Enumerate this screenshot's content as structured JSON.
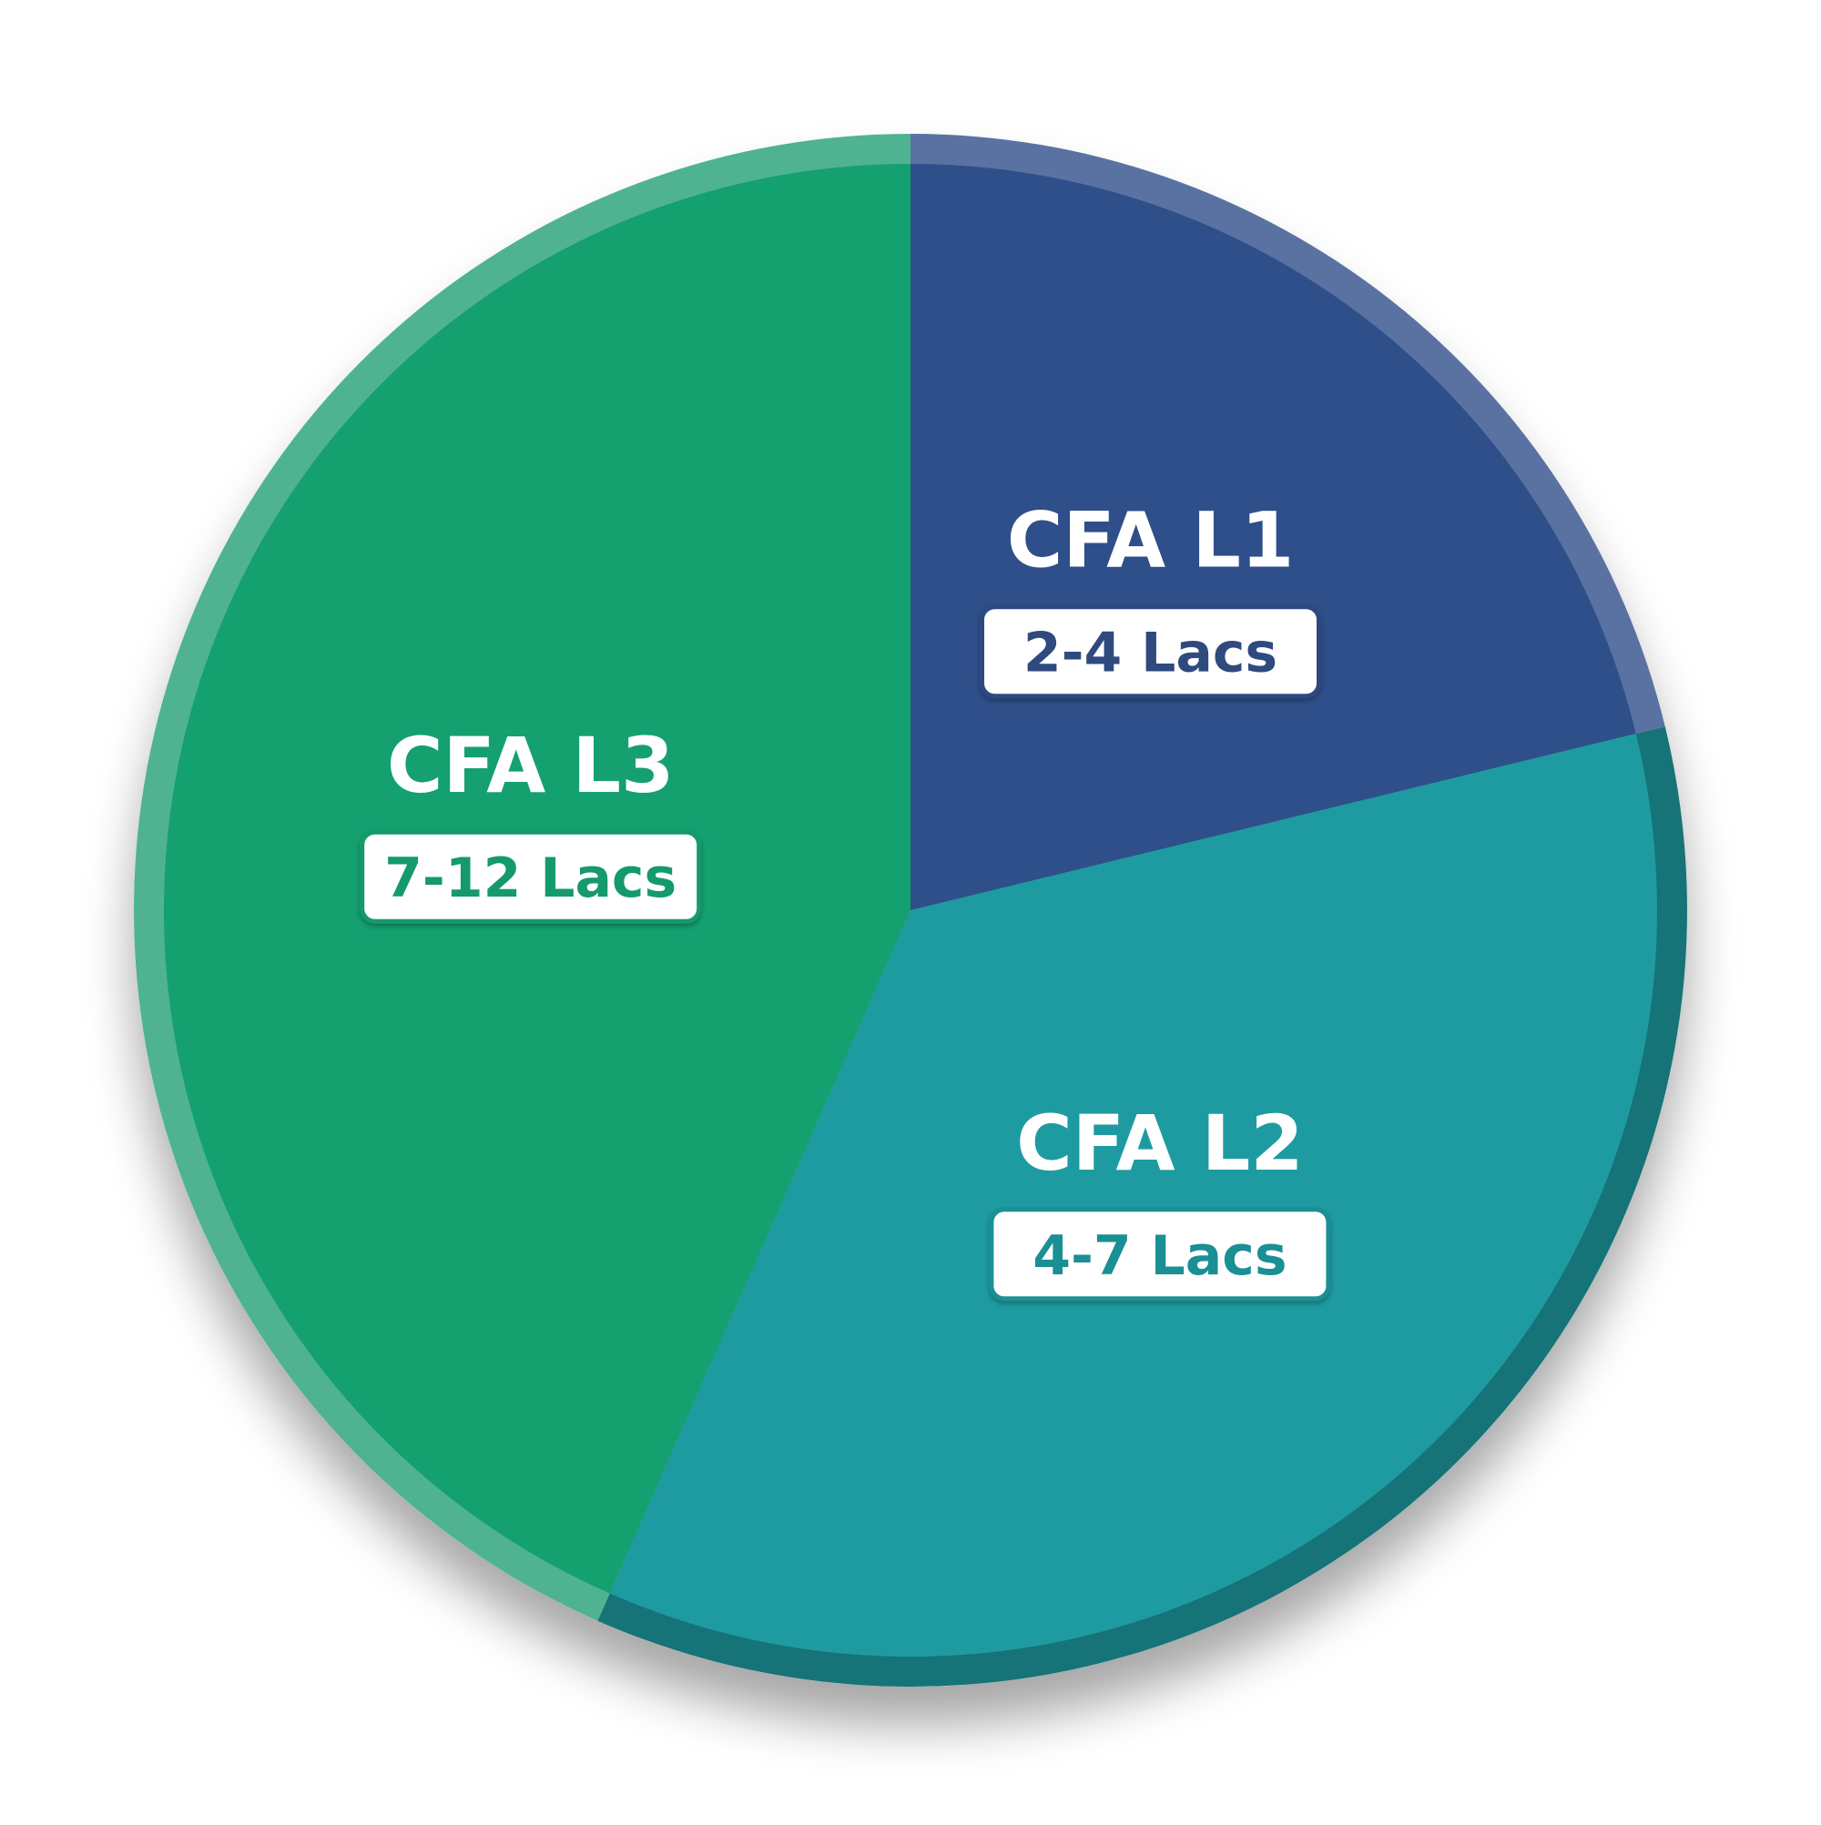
{
  "chart_data": {
    "type": "pie",
    "title": "",
    "slices": [
      {
        "label": "CFA L1",
        "value": 21.2,
        "range_label": "2-4 Lacs",
        "color": "#2F4F8A",
        "edge_color": "#5A72A2",
        "label_color": "#2E4A7F"
      },
      {
        "label": "CFA L2",
        "value": 35.4,
        "range_label": "4-7 Lacs",
        "color": "#1E9BA0",
        "edge_color": "#167378",
        "label_color": "#1A8F94"
      },
      {
        "label": "CFA L3",
        "value": 43.4,
        "range_label": "7-12 Lacs",
        "color": "#15A070",
        "edge_color": "#4FB391",
        "label_color": "#149A6B"
      }
    ]
  }
}
